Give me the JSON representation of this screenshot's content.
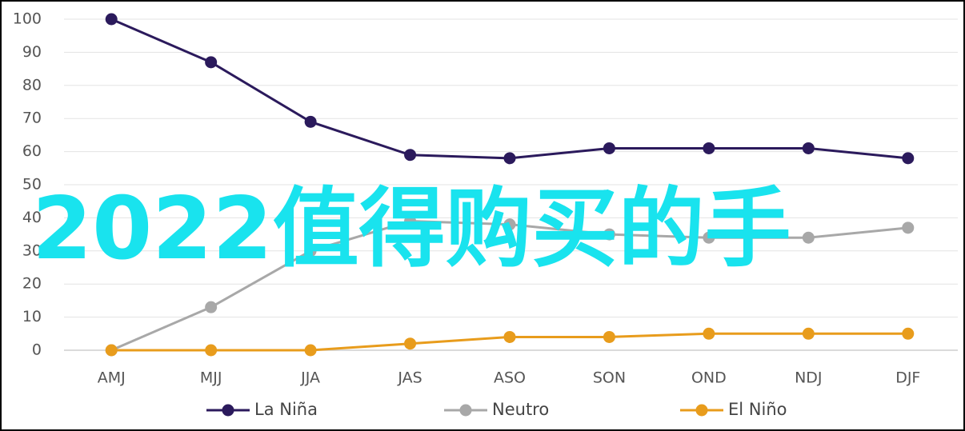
{
  "chart_data": {
    "type": "line",
    "categories": [
      "AMJ",
      "MJJ",
      "JJA",
      "JAS",
      "ASO",
      "SON",
      "OND",
      "NDJ",
      "DJF"
    ],
    "series": [
      {
        "name": "La Niña",
        "color": "#2b1a5c",
        "values": [
          100,
          87,
          69,
          59,
          58,
          61,
          61,
          61,
          58
        ]
      },
      {
        "name": "Neutro",
        "color": "#a8a8a8",
        "values": [
          0,
          13,
          30,
          39,
          38,
          35,
          34,
          34,
          37
        ]
      },
      {
        "name": "El Niño",
        "color": "#e89c1c",
        "values": [
          0,
          0,
          0,
          2,
          4,
          4,
          5,
          5,
          5
        ]
      }
    ],
    "ylim": [
      0,
      100
    ],
    "yticks": [
      0,
      10,
      20,
      30,
      40,
      50,
      60,
      70,
      80,
      90,
      100
    ],
    "grid": true,
    "legend": "bottom",
    "overlay_text": "2022值得购买的手"
  }
}
